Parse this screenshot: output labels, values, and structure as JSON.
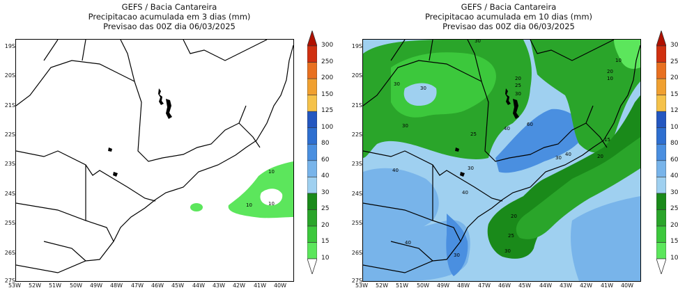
{
  "left_panel": {
    "title": [
      "GEFS / Bacia Cantareira",
      "Precipitacao acumulada em 3 dias (mm)",
      "Previsao das 00Z dia 06/03/2025"
    ]
  },
  "right_panel": {
    "title": [
      "GEFS / Bacia Cantareira",
      "Precipitacao acumulada em 10 dias (mm)",
      "Previsao das 00Z dia 06/03/2025"
    ]
  },
  "axes": {
    "y_ticks": [
      "19S",
      "20S",
      "21S",
      "22S",
      "23S",
      "24S",
      "25S",
      "26S",
      "27S"
    ],
    "x_ticks": [
      "53W",
      "52W",
      "51W",
      "50W",
      "49W",
      "48W",
      "47W",
      "46W",
      "45W",
      "44W",
      "43W",
      "42W",
      "41W",
      "40W"
    ]
  },
  "colorbar": {
    "levels": [
      "10",
      "15",
      "20",
      "25",
      "30",
      "40",
      "60",
      "80",
      "100",
      "125",
      "150",
      "200",
      "250",
      "300"
    ],
    "colors": [
      "#ffffff",
      "#5ce65c",
      "#3cc83c",
      "#2aa52a",
      "#1a8a1a",
      "#9fd0f0",
      "#78b4ea",
      "#4a8fe0",
      "#2e6fd0",
      "#2457c0",
      "#f5c24a",
      "#f0a030",
      "#e87020",
      "#d03010",
      "#b01000"
    ]
  },
  "chart_data": [
    {
      "type": "heatmap",
      "title": "GEFS / Bacia Cantareira - Precipitacao acumulada em 3 dias (mm)",
      "subtitle": "Previsao das 00Z dia 06/03/2025",
      "xlim": [
        -53,
        -39.7
      ],
      "ylim": [
        -27,
        -18.7
      ],
      "contour_labels": [
        "10",
        "10",
        "10"
      ],
      "max_region": "offshore east of 42W, 23S-25S, 10-15 mm"
    },
    {
      "type": "heatmap",
      "title": "GEFS / Bacia Cantareira - Precipitacao acumulada em 10 dias (mm)",
      "subtitle": "Previsao das 00Z dia 06/03/2025",
      "xlim": [
        -53,
        -39.7
      ],
      "ylim": [
        -27,
        -18.7
      ],
      "contour_labels": [
        "30",
        "30",
        "30",
        "30",
        "25",
        "10",
        "20",
        "25",
        "30",
        "20",
        "40",
        "60",
        "40",
        "30",
        "40",
        "20",
        "40",
        "30",
        "20",
        "25",
        "30",
        "40",
        "30",
        "15",
        "10"
      ],
      "max_region": "Vale do Paraiba near 45W 22S, 60 mm"
    }
  ]
}
